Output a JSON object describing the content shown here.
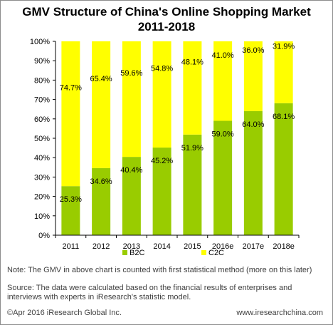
{
  "title_line1": "GMV Structure of China's Online Shopping Market",
  "title_line2": "2011-2018",
  "chart_data": {
    "type": "bar",
    "stacked": true,
    "categories": [
      "2011",
      "2012",
      "2013",
      "2014",
      "2015",
      "2016e",
      "2017e",
      "2018e"
    ],
    "series": [
      {
        "name": "B2C",
        "values": [
          25.3,
          34.6,
          40.4,
          45.2,
          51.9,
          59.0,
          64.0,
          68.1
        ],
        "labels": [
          "25.3%",
          "34.6%",
          "40.4%",
          "45.2%",
          "51.9%",
          "59.0%",
          "64.0%",
          "68.1%"
        ],
        "color": "#99cc00"
      },
      {
        "name": "C2C",
        "values": [
          74.7,
          65.4,
          59.6,
          54.8,
          48.1,
          41.0,
          36.0,
          31.9
        ],
        "labels": [
          "74.7%",
          "65.4%",
          "59.6%",
          "54.8%",
          "48.1%",
          "41.0%",
          "36.0%",
          "31.9%"
        ],
        "color": "#ffff00"
      }
    ],
    "yticks": [
      "0%",
      "10%",
      "20%",
      "30%",
      "40%",
      "50%",
      "60%",
      "70%",
      "80%",
      "90%",
      "100%"
    ],
    "ylim": [
      0,
      100
    ],
    "grid": false,
    "legend": "bottom"
  },
  "note1": "Note: The GMV in above chart is counted with first statistical method (more on this later)",
  "note2": "Source: The data were calculated based on the financial results of enterprises and interviews with experts in iResearch's statistic model.",
  "footer_left": "©Apr 2016 iResearch Global Inc.",
  "footer_right": "www.iresearchchina.com"
}
